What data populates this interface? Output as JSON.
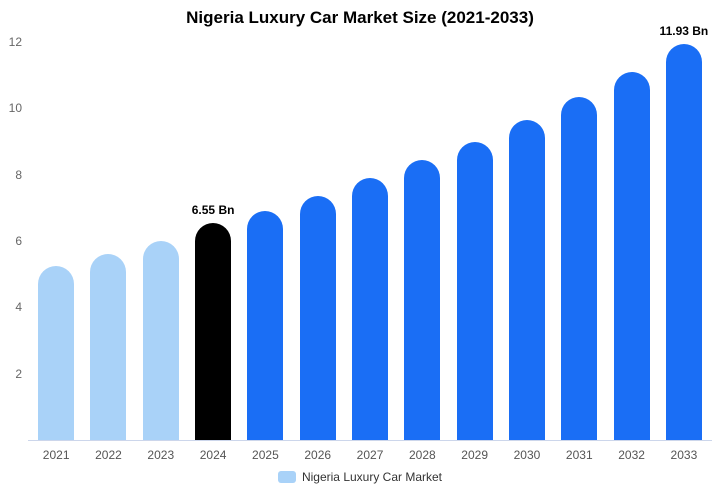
{
  "title": "Nigeria Luxury Car Market Size (2021-2033)",
  "legend": {
    "label": "Nigeria Luxury Car Market",
    "marker_color": "#a9d2f8"
  },
  "colors": {
    "light_blue": "#a9d2f8",
    "black": "#000000",
    "bright_blue": "#1a6ef5",
    "axis_text": "#666666",
    "baseline": "#ccd6eb"
  },
  "chart_data": {
    "type": "bar",
    "title": "Nigeria Luxury Car Market Size (2021-2033)",
    "xlabel": "",
    "ylabel": "",
    "ylim": [
      0,
      12
    ],
    "yticks": [
      2,
      4,
      6,
      8,
      10,
      12
    ],
    "grid": false,
    "legend_position": "bottom",
    "legend_entries": [
      "Nigeria Luxury Car Market"
    ],
    "categories": [
      "2021",
      "2022",
      "2023",
      "2024",
      "2025",
      "2026",
      "2027",
      "2028",
      "2029",
      "2030",
      "2031",
      "2032",
      "2033"
    ],
    "values": [
      5.25,
      5.6,
      6.0,
      6.55,
      6.9,
      7.35,
      7.9,
      8.45,
      9.0,
      9.65,
      10.35,
      11.1,
      11.93
    ],
    "bar_colors": [
      "#a9d2f8",
      "#a9d2f8",
      "#a9d2f8",
      "#000000",
      "#1a6ef5",
      "#1a6ef5",
      "#1a6ef5",
      "#1a6ef5",
      "#1a6ef5",
      "#1a6ef5",
      "#1a6ef5",
      "#1a6ef5",
      "#1a6ef5"
    ],
    "data_labels": [
      "",
      "",
      "",
      "6.55 Bn",
      "",
      "",
      "",
      "",
      "",
      "",
      "",
      "",
      "11.93 Bn"
    ]
  }
}
